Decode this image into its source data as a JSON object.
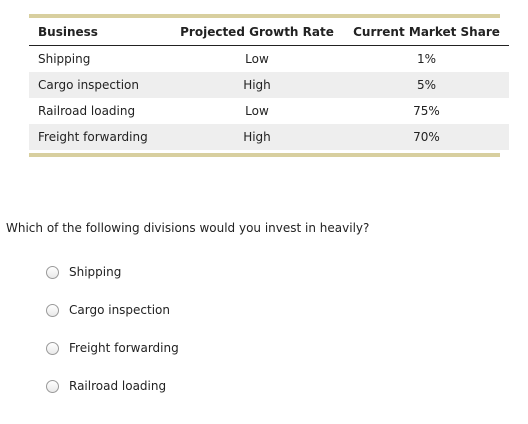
{
  "table": {
    "headers": [
      "Business",
      "Projected Growth Rate",
      "Current Market Share"
    ],
    "rows": [
      {
        "business": "Shipping",
        "growth": "Low",
        "share": "1%"
      },
      {
        "business": "Cargo inspection",
        "growth": "High",
        "share": "5%"
      },
      {
        "business": "Railroad loading",
        "growth": "Low",
        "share": "75%"
      },
      {
        "business": "Freight forwarding",
        "growth": "High",
        "share": "70%"
      }
    ]
  },
  "question": {
    "text": "Which of the following divisions would you invest in heavily?"
  },
  "options": [
    {
      "label": "Shipping"
    },
    {
      "label": "Cargo inspection"
    },
    {
      "label": "Freight forwarding"
    },
    {
      "label": "Railroad loading"
    }
  ],
  "colors": {
    "accent_bar": "#d8cf9f",
    "alt_row": "#eeeeee"
  }
}
